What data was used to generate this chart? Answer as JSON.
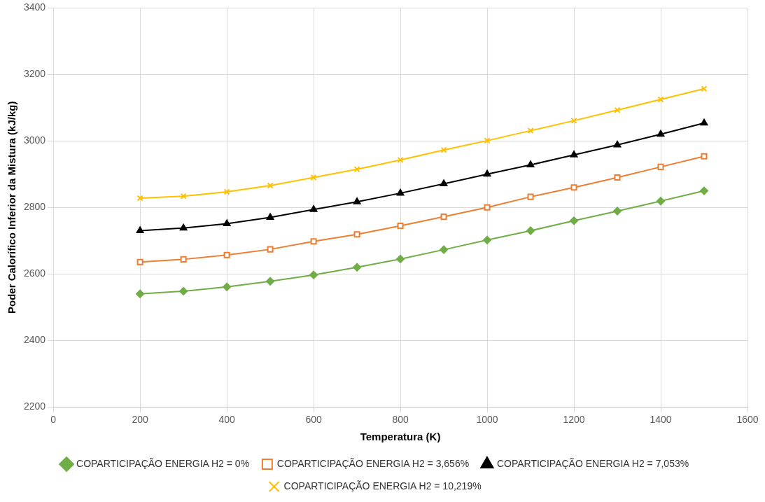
{
  "chart_data": {
    "type": "line",
    "xlabel": "Temperatura (K)",
    "ylabel": "Poder Calorífico Inferior da Mistura (kJ/kg)",
    "x": [
      200,
      300,
      400,
      500,
      600,
      700,
      800,
      900,
      1000,
      1100,
      1200,
      1300,
      1400,
      1500
    ],
    "series": [
      {
        "name": "COPARTICIPAÇÃO ENERGIA H2 = 0%",
        "color": "#70ad47",
        "marker": "diamond",
        "values": [
          2540,
          2548,
          2561,
          2578,
          2597,
          2620,
          2645,
          2673,
          2702,
          2730,
          2760,
          2789,
          2819,
          2850
        ]
      },
      {
        "name": "COPARTICIPAÇÃO ENERGIA H2 = 3,656%",
        "color": "#ed7d31",
        "marker": "square",
        "values": [
          2636,
          2644,
          2657,
          2674,
          2698,
          2719,
          2745,
          2772,
          2800,
          2832,
          2860,
          2890,
          2922,
          2954
        ]
      },
      {
        "name": "COPARTICIPAÇÃO ENERGIA H2 = 7,053%",
        "color": "#000000",
        "marker": "triangle",
        "values": [
          2730,
          2738,
          2751,
          2770,
          2794,
          2817,
          2843,
          2871,
          2900,
          2928,
          2958,
          2988,
          3020,
          3054
        ]
      },
      {
        "name": "COPARTICIPAÇÃO ENERGIA H2 = 10,219%",
        "color": "#ffc000",
        "marker": "cross",
        "values": [
          2828,
          2834,
          2847,
          2866,
          2890,
          2915,
          2943,
          2973,
          3001,
          3031,
          3061,
          3093,
          3125,
          3157
        ]
      }
    ],
    "xlim": [
      0,
      1600
    ],
    "xticks": [
      0,
      200,
      400,
      600,
      800,
      1000,
      1200,
      1400,
      1600
    ],
    "ylim": [
      2200,
      3400
    ],
    "yticks": [
      2200,
      2400,
      2600,
      2800,
      3000,
      3200,
      3400
    ],
    "grid": true,
    "legend": "bottom",
    "line_style": "solid"
  }
}
